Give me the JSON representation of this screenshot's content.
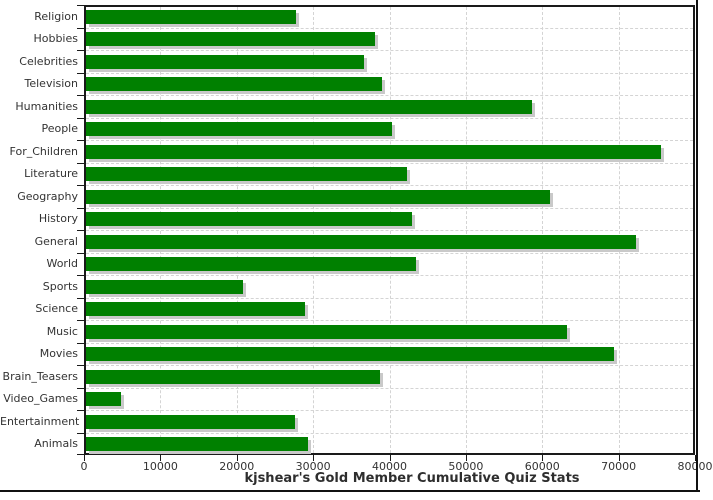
{
  "chart_data": {
    "type": "bar",
    "orientation": "horizontal",
    "title": "kjshear's Gold Member Cumulative Quiz Stats",
    "xlabel": "",
    "ylabel": "",
    "categories": [
      "Religion",
      "Hobbies",
      "Celebrities",
      "Television",
      "Humanities",
      "People",
      "For_Children",
      "Literature",
      "Geography",
      "History",
      "General",
      "World",
      "Sports",
      "Science",
      "Music",
      "Movies",
      "Brain_Teasers",
      "Video_Games",
      "Entertainment",
      "Animals"
    ],
    "values": [
      27500,
      37900,
      36400,
      38700,
      58400,
      40100,
      75300,
      42000,
      60800,
      42700,
      72000,
      43200,
      20500,
      28700,
      63000,
      69100,
      38500,
      4600,
      27400,
      29100
    ],
    "xlim": [
      0,
      80000
    ],
    "x_ticks": [
      0,
      10000,
      20000,
      30000,
      40000,
      50000,
      60000,
      70000,
      80000
    ],
    "x_tick_labels": [
      "0",
      "10000",
      "20000",
      "30000",
      "40000",
      "50000",
      "60000",
      "70000",
      "80000"
    ],
    "grid": true,
    "legend": "none",
    "colors": {
      "bar": "#008000",
      "bar_shadow": "#c9c9c9",
      "gridline": "#d4d4d4",
      "axis": "#1a1a1a",
      "text": "#333333",
      "background": "#ffffff"
    }
  }
}
